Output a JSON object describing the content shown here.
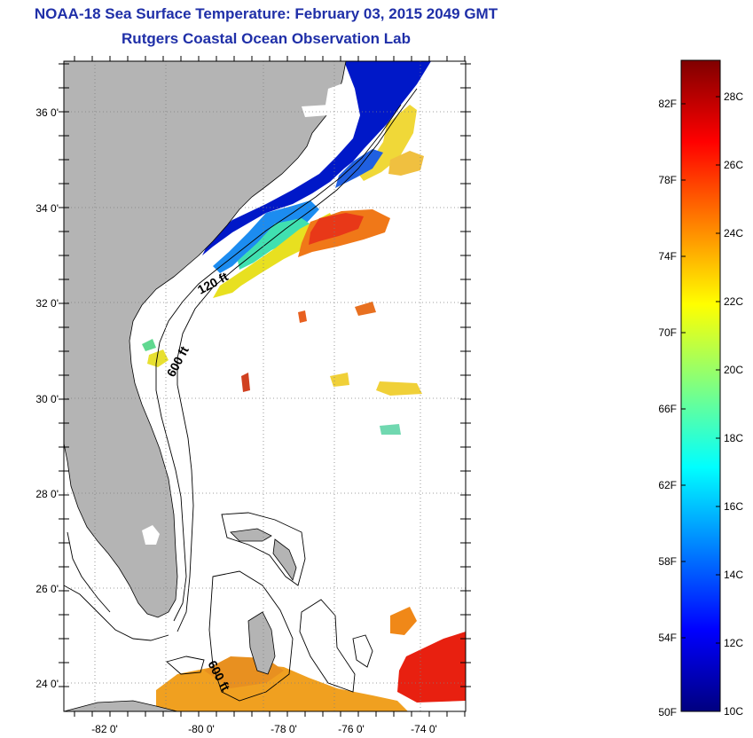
{
  "title_line1": "NOAA-18 Sea Surface Temperature:  February 03, 2015 2049 GMT",
  "title_line2": "Rutgers Coastal Ocean Observation Lab",
  "map": {
    "lat_ticks": [
      "36 0'",
      "34 0'",
      "32 0'",
      "30 0'",
      "28 0'",
      "26 0'",
      "24 0'"
    ],
    "lon_ticks": [
      "-82 0'",
      "-80 0'",
      "-78 0'",
      "-76 0'",
      "-74 0'"
    ],
    "contour_labels": [
      "120 ft",
      "600 ft",
      "600 ft"
    ],
    "colors": {
      "land": "#b4b4b4",
      "ocean_nodata": "#ffffff",
      "grid": "#808080"
    }
  },
  "colorbar": {
    "fahrenheit_labels": [
      "82F",
      "78F",
      "74F",
      "70F",
      "66F",
      "62F",
      "58F",
      "54F",
      "50F"
    ],
    "celsius_labels": [
      "28C",
      "26C",
      "24C",
      "22C",
      "20C",
      "18C",
      "16C",
      "14C",
      "12C",
      "10C"
    ],
    "min_c": 10,
    "max_c": 29,
    "stops": [
      "#00007f",
      "#0000ff",
      "#0080ff",
      "#00ffff",
      "#80ff80",
      "#ffff00",
      "#ff8000",
      "#ff0000",
      "#7f0000"
    ]
  }
}
